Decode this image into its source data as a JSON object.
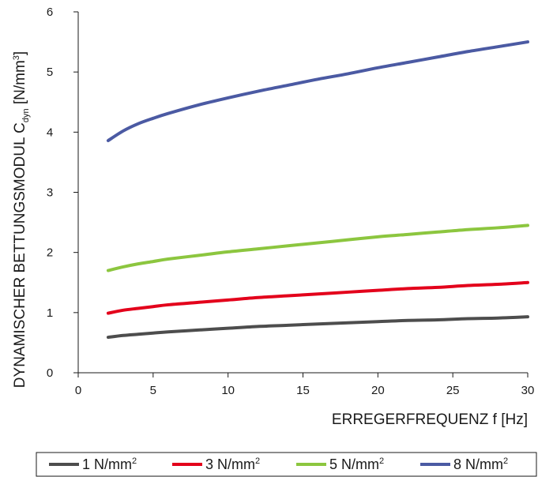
{
  "chart_data": {
    "type": "line",
    "xlabel": "ERREGERFREQUENZ f [Hz]",
    "ylabel": {
      "main": "DYNAMISCHER BETTUNGSMODUL C",
      "subscript": "dyn",
      "unit_open": " [N/mm",
      "unit_power": "3",
      "unit_close": "]"
    },
    "xlim": [
      0,
      30
    ],
    "ylim": [
      0,
      6
    ],
    "x_ticks": [
      "0",
      "5",
      "10",
      "15",
      "20",
      "25",
      "30"
    ],
    "y_ticks": [
      "0",
      "1",
      "2",
      "3",
      "4",
      "5",
      "6"
    ],
    "grid": false,
    "legend_position": "bottom",
    "x": [
      2,
      3,
      4,
      5,
      6,
      8,
      10,
      12,
      14,
      16,
      18,
      20,
      22,
      24,
      26,
      28,
      30
    ],
    "series": [
      {
        "name": "1 N/mm",
        "name_sup": "2",
        "color": "#4d4d4d",
        "values": [
          0.59,
          0.62,
          0.64,
          0.66,
          0.68,
          0.71,
          0.74,
          0.77,
          0.79,
          0.81,
          0.83,
          0.85,
          0.87,
          0.88,
          0.9,
          0.91,
          0.93
        ]
      },
      {
        "name": "3 N/mm",
        "name_sup": "2",
        "color": "#e3001b",
        "values": [
          0.99,
          1.04,
          1.07,
          1.1,
          1.13,
          1.17,
          1.21,
          1.25,
          1.28,
          1.31,
          1.34,
          1.37,
          1.4,
          1.42,
          1.45,
          1.47,
          1.5
        ]
      },
      {
        "name": "5 N/mm",
        "name_sup": "2",
        "color": "#8cc63f",
        "values": [
          1.7,
          1.76,
          1.81,
          1.85,
          1.89,
          1.95,
          2.01,
          2.06,
          2.11,
          2.16,
          2.21,
          2.26,
          2.3,
          2.34,
          2.38,
          2.41,
          2.45
        ]
      },
      {
        "name": "8 N/mm",
        "name_sup": "2",
        "color": "#4b5aa3",
        "values": [
          3.86,
          4.02,
          4.14,
          4.23,
          4.31,
          4.45,
          4.57,
          4.68,
          4.78,
          4.88,
          4.97,
          5.07,
          5.16,
          5.25,
          5.34,
          5.42,
          5.5
        ]
      }
    ]
  }
}
